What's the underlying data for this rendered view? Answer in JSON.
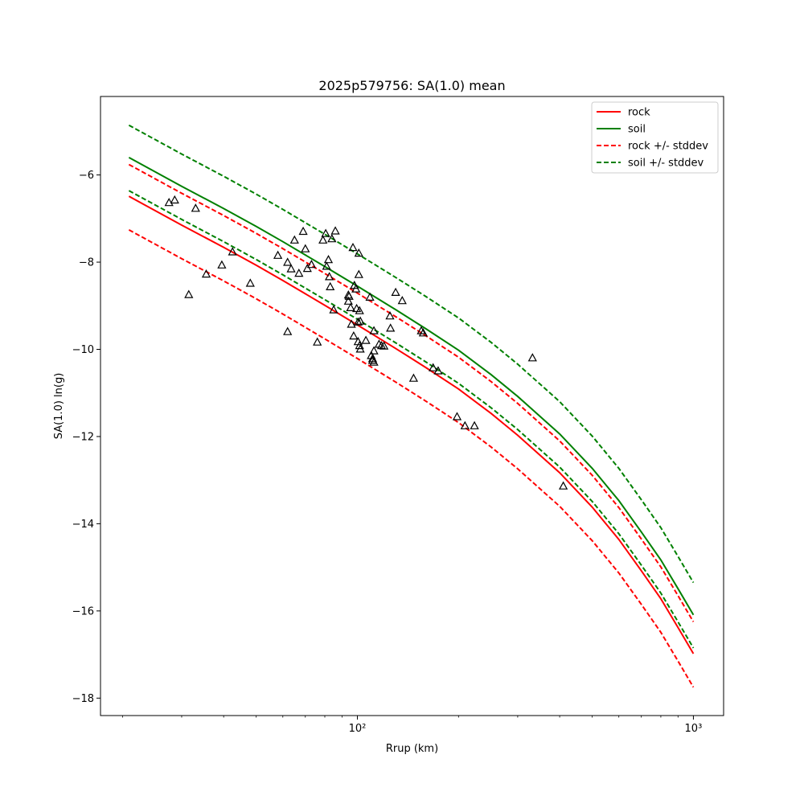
{
  "chart_data": {
    "type": "scatter",
    "title": "2025p579756: SA(1.0) mean",
    "xlabel": "Rrup (km)",
    "ylabel": "SA(1.0) ln(g)",
    "xscale": "log",
    "xlim": [
      17.2,
      1230
    ],
    "ylim": [
      -18.4,
      -4.2
    ],
    "x_tick_labels": [
      "10²",
      "10³"
    ],
    "x_tick_values": [
      100,
      1000
    ],
    "y_tick_values": [
      -18,
      -16,
      -14,
      -12,
      -10,
      -8,
      -6
    ],
    "y_tick_labels": [
      "−18",
      "−16",
      "−14",
      "−12",
      "−10",
      "−8",
      "−6"
    ],
    "grid": false,
    "legend_position": "top-right",
    "series": [
      {
        "name": "rock",
        "style": "solid",
        "color": "#ff0000",
        "x": [
          20.9,
          30,
          40,
          50,
          60,
          80,
          100,
          130,
          160,
          200,
          250,
          300,
          400,
          500,
          600,
          700,
          800,
          900,
          1000
        ],
        "y": [
          -6.49,
          -7.15,
          -7.66,
          -8.07,
          -8.42,
          -8.99,
          -9.44,
          -9.98,
          -10.42,
          -10.91,
          -11.47,
          -11.97,
          -12.83,
          -13.62,
          -14.36,
          -15.08,
          -15.72,
          -16.38,
          -16.98
        ]
      },
      {
        "name": "soil",
        "style": "solid",
        "color": "#008000",
        "x": [
          20.9,
          30,
          40,
          50,
          60,
          80,
          100,
          130,
          160,
          200,
          250,
          300,
          400,
          500,
          600,
          700,
          800,
          900,
          1000
        ],
        "y": [
          -5.6,
          -6.26,
          -6.77,
          -7.18,
          -7.53,
          -8.1,
          -8.55,
          -9.09,
          -9.53,
          -10.02,
          -10.58,
          -11.08,
          -11.94,
          -12.73,
          -13.47,
          -14.19,
          -14.83,
          -15.49,
          -16.09
        ]
      },
      {
        "name": "rock +/- stddev",
        "style": "dashed",
        "color": "#ff0000",
        "x": [
          20.9,
          30,
          40,
          50,
          60,
          80,
          100,
          130,
          160,
          200,
          250,
          300,
          400,
          500,
          600,
          700,
          800,
          900,
          1000
        ],
        "y_upper": [
          -5.76,
          -6.42,
          -6.93,
          -7.34,
          -7.69,
          -8.26,
          -8.71,
          -9.25,
          -9.69,
          -10.18,
          -10.74,
          -11.24,
          -12.1,
          -12.89,
          -13.63,
          -14.35,
          -14.99,
          -15.65,
          -16.25
        ],
        "y_lower": [
          -7.26,
          -7.92,
          -8.43,
          -8.84,
          -9.19,
          -9.76,
          -10.21,
          -10.75,
          -11.19,
          -11.68,
          -12.24,
          -12.74,
          -13.6,
          -14.39,
          -15.13,
          -15.85,
          -16.49,
          -17.15,
          -17.75
        ]
      },
      {
        "name": "soil +/- stddev",
        "style": "dashed",
        "color": "#008000",
        "x": [
          20.9,
          30,
          40,
          50,
          60,
          80,
          100,
          130,
          160,
          200,
          250,
          300,
          400,
          500,
          600,
          700,
          800,
          900,
          1000
        ],
        "y_upper": [
          -4.86,
          -5.52,
          -6.03,
          -6.44,
          -6.79,
          -7.36,
          -7.81,
          -8.35,
          -8.79,
          -9.28,
          -9.84,
          -10.34,
          -11.2,
          -11.99,
          -12.73,
          -13.45,
          -14.09,
          -14.75,
          -15.35
        ],
        "y_lower": [
          -6.36,
          -7.02,
          -7.53,
          -7.94,
          -8.29,
          -8.86,
          -9.31,
          -9.85,
          -10.29,
          -10.78,
          -11.34,
          -11.84,
          -12.7,
          -13.49,
          -14.23,
          -14.95,
          -15.59,
          -16.25,
          -16.85
        ]
      }
    ],
    "observations": {
      "marker": "open-triangle",
      "color": "#000000",
      "x": [
        27.5,
        28.6,
        31.5,
        33,
        35.5,
        39.5,
        42.5,
        48,
        58,
        62,
        62,
        63.5,
        65,
        67,
        69,
        70,
        71,
        73,
        76,
        79,
        80.5,
        81,
        82,
        82.5,
        83,
        84,
        85,
        86,
        94,
        94,
        94.5,
        95.5,
        96,
        97,
        97.5,
        98,
        99,
        99.5,
        100.5,
        100.5,
        101,
        101,
        101.5,
        101.5,
        102,
        102,
        106,
        109,
        110,
        111,
        111,
        112,
        112,
        112,
        116,
        118,
        120,
        125,
        125.5,
        130,
        136,
        147,
        155,
        157,
        168,
        174,
        198,
        209,
        223,
        332,
        410
      ],
      "y": [
        -6.64,
        -6.58,
        -8.75,
        -6.77,
        -8.28,
        -8.07,
        -7.77,
        -8.49,
        -7.85,
        -9.6,
        -8.01,
        -8.16,
        -7.5,
        -8.26,
        -7.3,
        -7.7,
        -8.15,
        -8.06,
        -9.84,
        -7.5,
        -7.35,
        -8.1,
        -7.95,
        -8.34,
        -8.57,
        -7.47,
        -9.1,
        -7.29,
        -8.76,
        -8.9,
        -8.79,
        -9.05,
        -9.43,
        -7.67,
        -9.7,
        -8.54,
        -8.62,
        -9.07,
        -9.83,
        -9.38,
        -7.8,
        -8.29,
        -9.12,
        -9.92,
        -9.36,
        -10.0,
        -9.8,
        -8.81,
        -10.15,
        -10.26,
        -10.22,
        -9.58,
        -10.3,
        -10.04,
        -9.89,
        -9.92,
        -9.93,
        -9.24,
        -9.52,
        -8.7,
        -8.89,
        -10.67,
        -9.58,
        -9.63,
        -10.43,
        -10.5,
        -11.55,
        -11.76,
        -11.76,
        -10.2,
        -13.14
      ]
    }
  }
}
